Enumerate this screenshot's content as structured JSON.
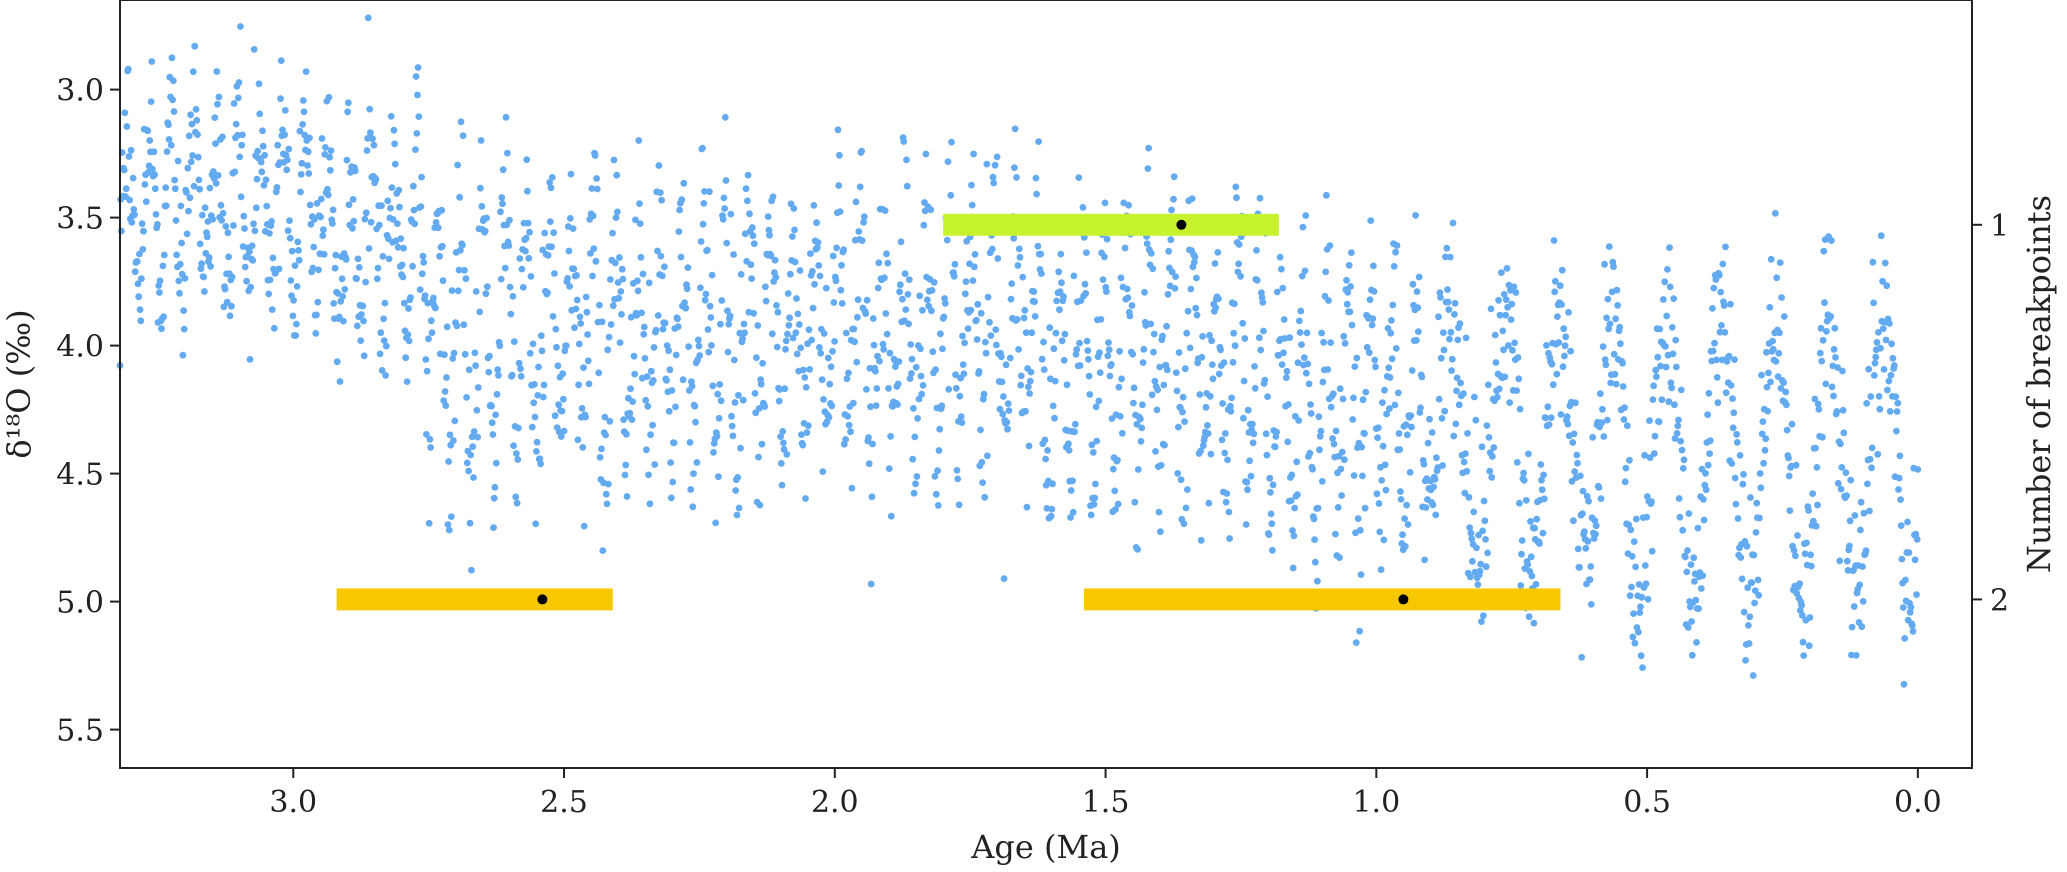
{
  "chart_data": {
    "type": "scatter",
    "title": "",
    "xlabel": "Age (Ma)",
    "ylabel": "δ¹⁸O (‰)",
    "ylabel_right": "Number of breakpoints",
    "xlim": [
      3.32,
      -0.1
    ],
    "ylim": [
      5.65,
      2.65
    ],
    "x_inverted": true,
    "y_inverted": true,
    "grid": false,
    "legend": "none",
    "x_ticks": [
      {
        "value": 3.0,
        "label": "3.0"
      },
      {
        "value": 2.5,
        "label": "2.5"
      },
      {
        "value": 2.0,
        "label": "2.0"
      },
      {
        "value": 1.5,
        "label": "1.5"
      },
      {
        "value": 1.0,
        "label": "1.0"
      },
      {
        "value": 0.5,
        "label": "0.5"
      },
      {
        "value": 0.0,
        "label": "0.0"
      }
    ],
    "y_ticks": [
      {
        "value": 3.0,
        "label": "3.0"
      },
      {
        "value": 3.5,
        "label": "3.5"
      },
      {
        "value": 4.0,
        "label": "4.0"
      },
      {
        "value": 4.5,
        "label": "4.5"
      },
      {
        "value": 5.0,
        "label": "5.0"
      },
      {
        "value": 5.5,
        "label": "5.5"
      }
    ],
    "right_axis": {
      "ylim": [
        2.45,
        0.4
      ],
      "ticks": [
        {
          "value": 1,
          "label": "1"
        },
        {
          "value": 2,
          "label": "2"
        }
      ]
    },
    "colors": {
      "scatter": "#63aaf0",
      "bar_1": "#c6f22e",
      "bar_2": "#f7c800",
      "breakpoint": "#000000",
      "axis": "#222222"
    },
    "series": [
      {
        "type": "scatter",
        "description": "LR04-style benthic δ18O stack, values sampled from the figure",
        "segments": [
          {
            "x0": 3.32,
            "x1": 2.95,
            "mean": 3.45,
            "amp": 0.3,
            "noise": 0.17,
            "period": 0.041
          },
          {
            "x0": 2.95,
            "x1": 2.75,
            "mean": 3.6,
            "amp": 0.32,
            "noise": 0.18,
            "period": 0.041
          },
          {
            "x0": 2.75,
            "x1": 2.4,
            "mean": 3.95,
            "amp": 0.45,
            "noise": 0.2,
            "period": 0.041
          },
          {
            "x0": 2.4,
            "x1": 1.6,
            "mean": 3.95,
            "amp": 0.38,
            "noise": 0.2,
            "period": 0.041
          },
          {
            "x0": 1.6,
            "x1": 1.2,
            "mean": 4.05,
            "amp": 0.4,
            "noise": 0.2,
            "period": 0.041
          },
          {
            "x0": 1.2,
            "x1": 0.9,
            "mean": 4.25,
            "amp": 0.42,
            "noise": 0.2,
            "period": 0.041
          },
          {
            "x0": 0.9,
            "x1": 0.6,
            "mean": 4.35,
            "amp": 0.5,
            "noise": 0.2,
            "period": 0.1
          },
          {
            "x0": 0.6,
            "x1": 0.0,
            "mean": 4.45,
            "amp": 0.55,
            "noise": 0.18,
            "period": 0.1
          }
        ],
        "count": 2600
      }
    ],
    "breakpoint_bars": [
      {
        "level": 1,
        "x_start": 1.8,
        "x_end": 1.18,
        "x_point": 1.36,
        "color": "#c6f22e"
      },
      {
        "level": 2,
        "x_start": 2.92,
        "x_end": 2.41,
        "x_point": 2.54,
        "color": "#f7c800"
      },
      {
        "level": 2,
        "x_start": 1.54,
        "x_end": 0.66,
        "x_point": 0.95,
        "color": "#f7c800"
      }
    ]
  }
}
